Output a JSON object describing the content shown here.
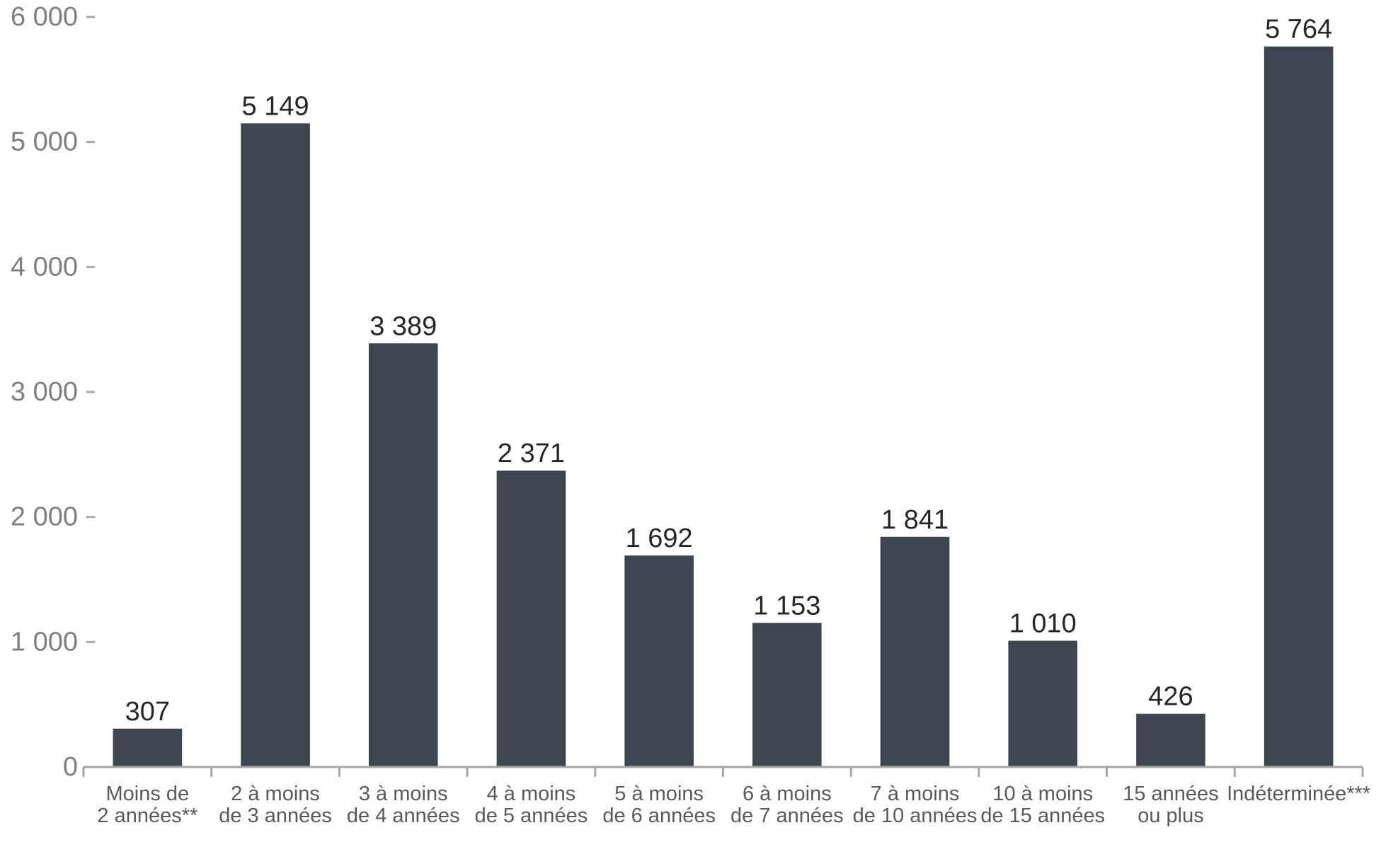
{
  "chart_data": {
    "type": "bar",
    "title": "",
    "xlabel": "",
    "ylabel": "",
    "ylim": [
      0,
      6000
    ],
    "yticks": [
      0,
      1000,
      2000,
      3000,
      4000,
      5000,
      6000
    ],
    "ytick_labels": [
      "0",
      "1 000",
      "2 000",
      "3 000",
      "4 000",
      "5 000",
      "6 000"
    ],
    "grid": false,
    "legend": "none",
    "bar_color": "#3c4550",
    "categories": [
      [
        "Moins de",
        "2 années**"
      ],
      [
        "2 à moins",
        "de 3 années"
      ],
      [
        "3 à moins",
        "de 4 années"
      ],
      [
        "4 à moins",
        "de 5 années"
      ],
      [
        "5 à moins",
        "de 6 années"
      ],
      [
        "6 à moins",
        "de 7 années"
      ],
      [
        "7 à moins",
        "de 10 années"
      ],
      [
        "10 à moins",
        "de 15 années"
      ],
      [
        "15 années",
        "ou plus"
      ],
      [
        "Indéterminée***"
      ]
    ],
    "values": [
      307,
      5149,
      3389,
      2371,
      1692,
      1153,
      1841,
      1010,
      426,
      5764
    ],
    "value_labels": [
      "307",
      "5 149",
      "3 389",
      "2 371",
      "1 692",
      "1 153",
      "1 841",
      "1 010",
      "426",
      "5 764"
    ]
  }
}
